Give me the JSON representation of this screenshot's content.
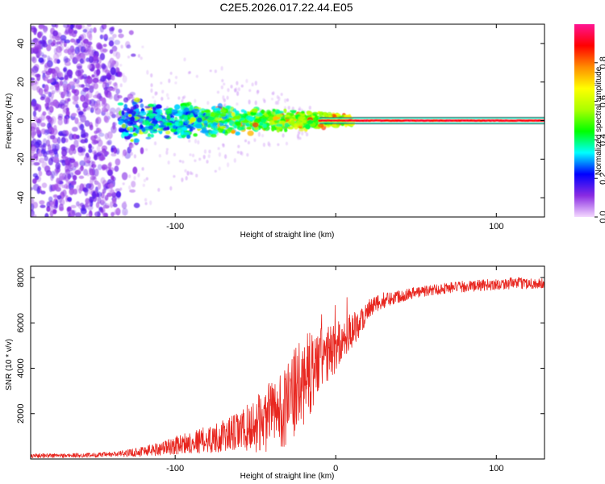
{
  "figure": {
    "title": "C2E5.2026.017.22.44.E05"
  },
  "colorbar": {
    "label": "Normalized spectral amplitude",
    "ticks": [
      0.0,
      0.2,
      0.4,
      0.6,
      0.8
    ],
    "tick_labels": [
      "0.0",
      "0.2",
      "0.4",
      "0.6",
      "0.8"
    ],
    "colors": [
      "#f4d9ff",
      "#8a2be2",
      "#0000ff",
      "#00ffff",
      "#00ff00",
      "#aaff00",
      "#ffff00",
      "#ff8c00",
      "#ff0000",
      "#ff1493"
    ]
  },
  "chart_data": [
    {
      "type": "heatmap",
      "name": "spectrogram",
      "title": "C2E5.2026.017.22.44.E05",
      "xlabel": "Height of straight line (km)",
      "ylabel": "Frequency (Hz)",
      "xlim": [
        -190,
        130
      ],
      "ylim": [
        -50,
        50
      ],
      "x_ticks": [
        -100,
        0,
        100
      ],
      "x_tick_labels": [
        "-100",
        "",
        "100"
      ],
      "y_ticks": [
        -40,
        -20,
        0,
        20,
        40
      ],
      "y_tick_labels": [
        "-40",
        "-20",
        "0",
        "20",
        "40"
      ],
      "zlim": [
        0,
        1
      ],
      "zlabel": "Normalized spectral amplitude",
      "description_regions": [
        {
          "x_range": [
            -190,
            -135
          ],
          "freq_range": [
            -50,
            50
          ],
          "amplitude": [
            0.02,
            0.15
          ]
        },
        {
          "x_range": [
            -135,
            -40
          ],
          "freq_range": [
            -12,
            12
          ],
          "amplitude": [
            0.1,
            0.4
          ]
        },
        {
          "x_range": [
            -40,
            0
          ],
          "freq_range": [
            -6,
            6
          ],
          "amplitude": [
            0.2,
            0.9
          ]
        },
        {
          "x_range": [
            0,
            130
          ],
          "freq_range": [
            -1,
            1
          ],
          "amplitude": [
            0.8,
            1.0
          ]
        }
      ]
    },
    {
      "type": "line",
      "name": "snr",
      "xlabel": "Height of straight line (km)",
      "ylabel": "SNR (10 * v/v)",
      "xlim": [
        -190,
        130
      ],
      "ylim": [
        0,
        8500
      ],
      "x_ticks": [
        -100,
        0,
        100
      ],
      "x_tick_labels": [
        "-100",
        "0",
        "100"
      ],
      "y_ticks": [
        2000,
        4000,
        6000,
        8000
      ],
      "y_tick_labels": [
        "2000",
        "4000",
        "6000",
        "8000"
      ],
      "color": "#e8261f",
      "series": [
        {
          "name": "SNR",
          "x": [
            -190,
            -180,
            -170,
            -160,
            -150,
            -140,
            -130,
            -120,
            -110,
            -100,
            -90,
            -80,
            -70,
            -60,
            -50,
            -40,
            -30,
            -25,
            -20,
            -15,
            -10,
            -5,
            0,
            5,
            10,
            15,
            20,
            25,
            30,
            35,
            40,
            50,
            60,
            70,
            80,
            90,
            100,
            110,
            120,
            130
          ],
          "y": [
            150,
            150,
            150,
            160,
            170,
            200,
            250,
            350,
            450,
            600,
            750,
            850,
            1000,
            1200,
            1500,
            1900,
            2400,
            2900,
            3400,
            3900,
            4300,
            4600,
            4900,
            5300,
            5700,
            6100,
            6500,
            6800,
            7000,
            7100,
            7200,
            7350,
            7450,
            7550,
            7600,
            7650,
            7700,
            7750,
            7750,
            7700
          ],
          "noise_amplitude": [
            100,
            100,
            100,
            100,
            100,
            120,
            150,
            250,
            300,
            400,
            500,
            600,
            700,
            900,
            1200,
            1600,
            1800,
            2000,
            2000,
            1800,
            1500,
            1300,
            1100,
            900,
            800,
            700,
            500,
            400,
            350,
            300,
            300,
            250,
            250,
            250,
            250,
            250,
            250,
            250,
            250,
            250
          ]
        }
      ]
    }
  ]
}
